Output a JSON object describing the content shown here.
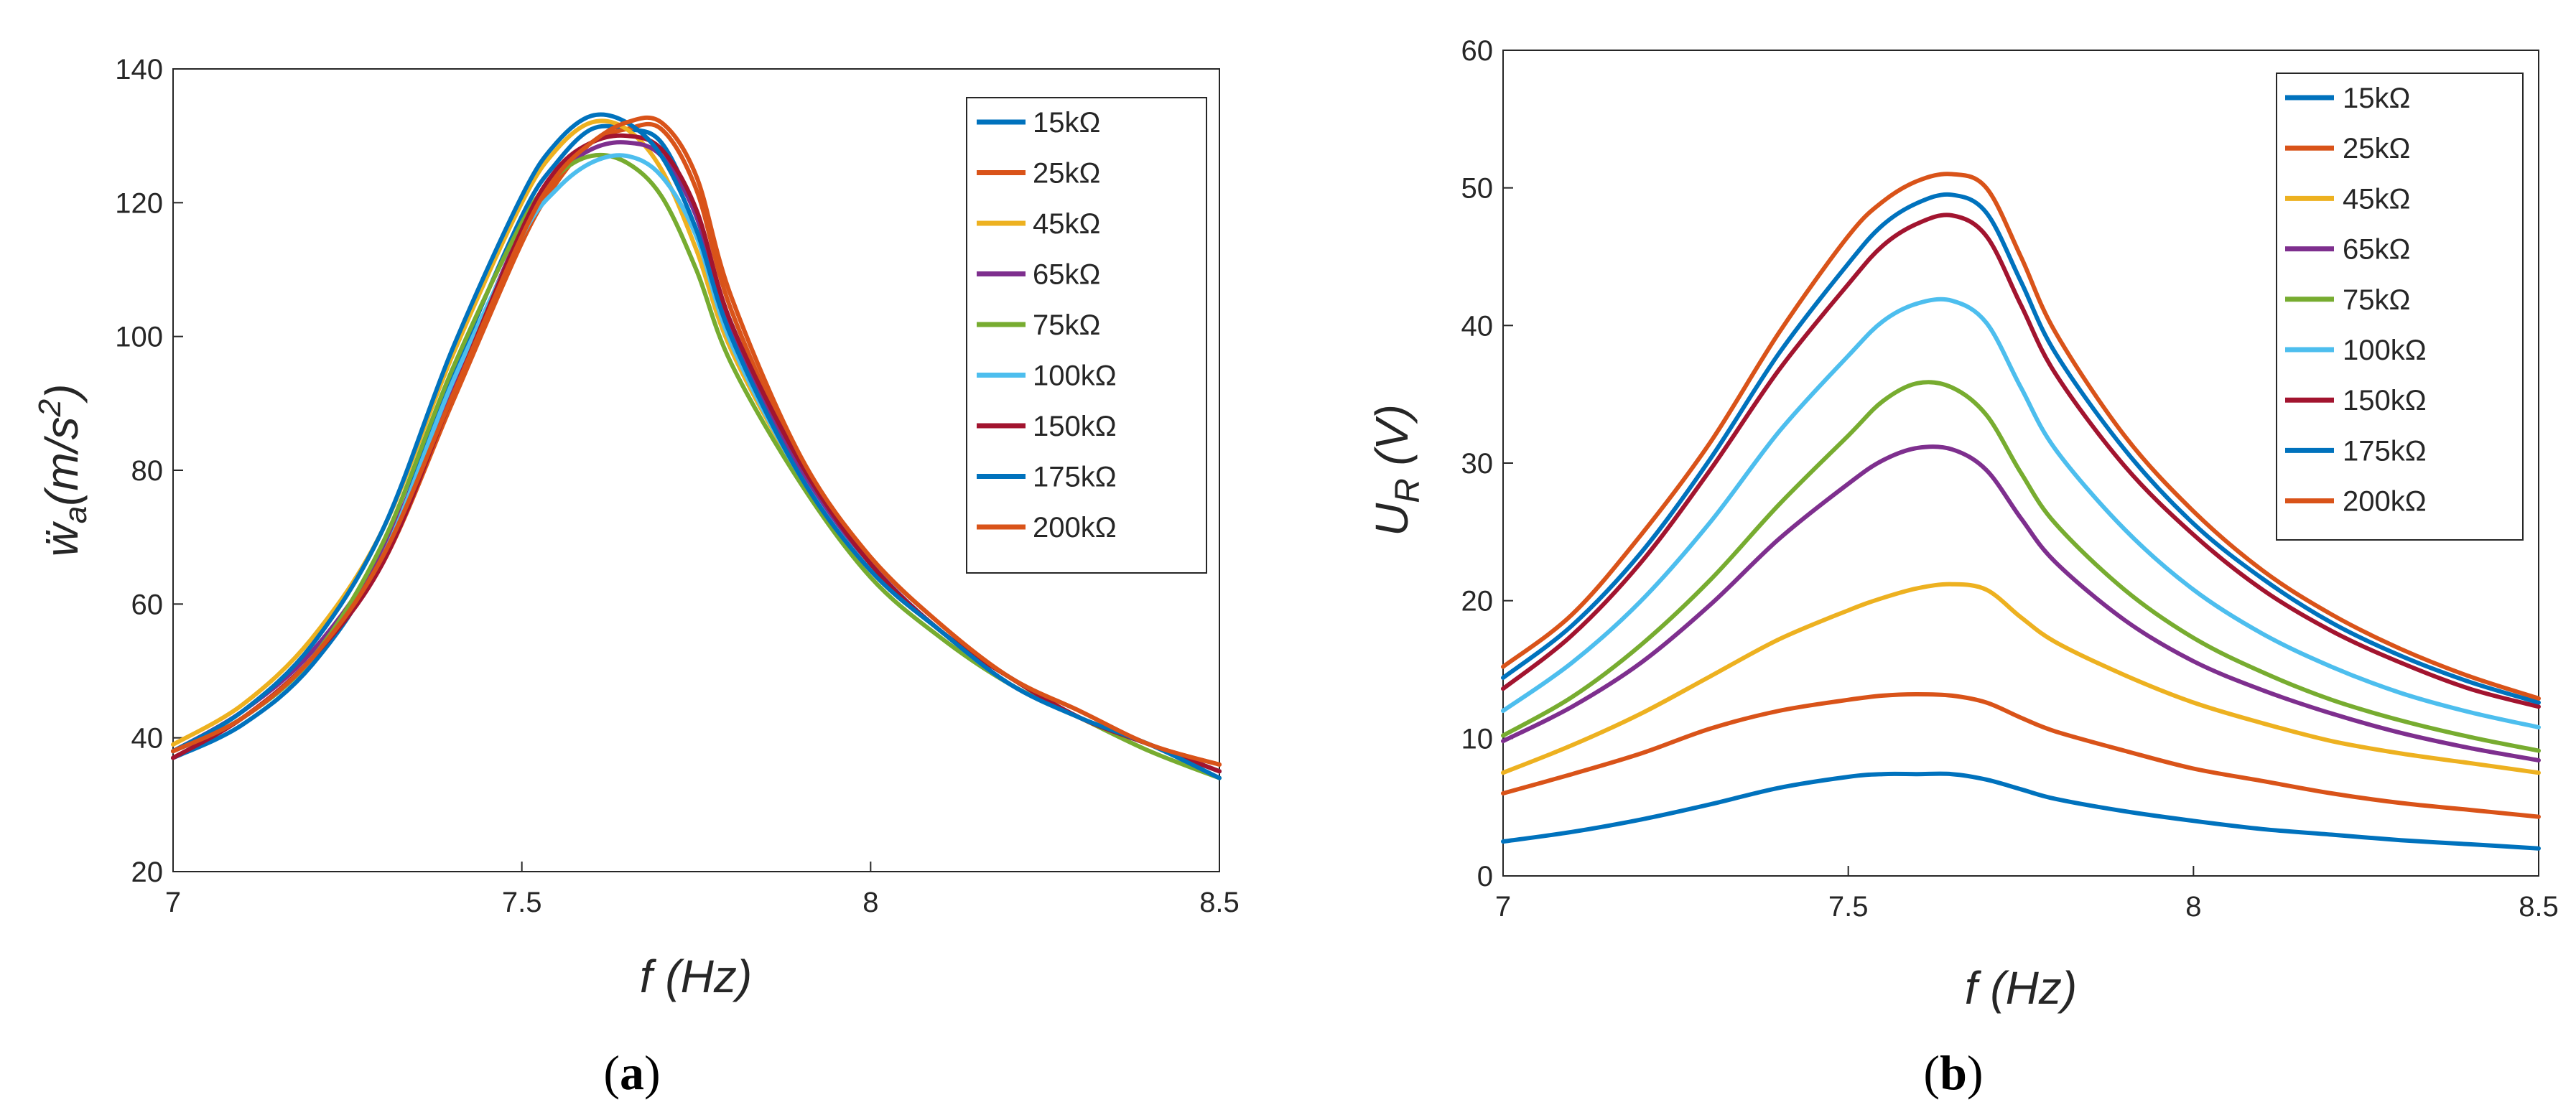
{
  "chart_data": [
    {
      "type": "line",
      "title": "",
      "caption": "a",
      "xlabel": "f (Hz)",
      "ylabel": "ẅa(m/s²)",
      "xlim": [
        7,
        8.5
      ],
      "ylim": [
        20,
        140
      ],
      "xticks": [
        "7",
        "7.5",
        "8",
        "8.5"
      ],
      "yticks": [
        "20",
        "40",
        "60",
        "80",
        "100",
        "120",
        "140"
      ],
      "legend_position": "top-right",
      "x": [
        7.0,
        7.1,
        7.2,
        7.3,
        7.4,
        7.5,
        7.55,
        7.6,
        7.65,
        7.7,
        7.75,
        7.8,
        7.9,
        8.0,
        8.1,
        8.2,
        8.3,
        8.4,
        8.5
      ],
      "series": [
        {
          "name": "15kΩ",
          "color": "#0072BD",
          "values": [
            37,
            42,
            51,
            67,
            94,
            118,
            126,
            131,
            131,
            129,
            118,
            102,
            80,
            66,
            56,
            49,
            43,
            39,
            35
          ]
        },
        {
          "name": "25kΩ",
          "color": "#D95319",
          "values": [
            38,
            43,
            52,
            66,
            90,
            114,
            123,
            129,
            131,
            131,
            122,
            104,
            81,
            67,
            57,
            49,
            44,
            39,
            36
          ]
        },
        {
          "name": "45kΩ",
          "color": "#EDB120",
          "values": [
            39,
            45,
            55,
            71,
            97,
            120,
            128,
            132,
            131,
            125,
            113,
            98,
            79,
            65,
            56,
            48,
            43,
            39,
            35
          ]
        },
        {
          "name": "65kΩ",
          "color": "#7E2F8E",
          "values": [
            38,
            44,
            53,
            68,
            92,
            116,
            124,
            128,
            129,
            127,
            118,
            101,
            80,
            66,
            56,
            49,
            43,
            39,
            35
          ]
        },
        {
          "name": "75kΩ",
          "color": "#77AC30",
          "values": [
            38,
            43,
            52,
            69,
            95,
            117,
            124,
            127,
            126,
            121,
            110,
            96,
            78,
            64,
            55,
            48,
            43,
            38,
            34
          ]
        },
        {
          "name": "100kΩ",
          "color": "#4DBEEE",
          "values": [
            38,
            43,
            52,
            67,
            93,
            115,
            122,
            126,
            127,
            124,
            115,
            99,
            79,
            65,
            56,
            48,
            43,
            39,
            35
          ]
        },
        {
          "name": "150kΩ",
          "color": "#A2142F",
          "values": [
            37,
            43,
            52,
            66,
            91,
            116,
            125,
            129,
            130,
            128,
            119,
            102,
            81,
            66,
            56,
            49,
            43,
            39,
            35
          ]
        },
        {
          "name": "175kΩ",
          "color": "#0072BD",
          "values": [
            38,
            44,
            54,
            71,
            98,
            121,
            129,
            133,
            132,
            127,
            116,
            100,
            79,
            65,
            56,
            48,
            43,
            39,
            34
          ]
        },
        {
          "name": "200kΩ",
          "color": "#D95319",
          "values": [
            38,
            43,
            52,
            67,
            91,
            115,
            124,
            129,
            132,
            132,
            124,
            106,
            82,
            67,
            57,
            49,
            44,
            39,
            36
          ]
        }
      ]
    },
    {
      "type": "line",
      "title": "",
      "caption": "b",
      "xlabel": "f (Hz)",
      "ylabel": "UR (V)",
      "xlim": [
        7,
        8.5
      ],
      "ylim": [
        0,
        60
      ],
      "xticks": [
        "7",
        "7.5",
        "8",
        "8.5"
      ],
      "yticks": [
        "0",
        "10",
        "20",
        "30",
        "40",
        "50",
        "60"
      ],
      "legend_position": "top-right",
      "x": [
        7.0,
        7.1,
        7.2,
        7.3,
        7.4,
        7.5,
        7.55,
        7.6,
        7.65,
        7.7,
        7.75,
        7.8,
        7.9,
        8.0,
        8.1,
        8.2,
        8.3,
        8.4,
        8.5
      ],
      "series": [
        {
          "name": "15kΩ",
          "color": "#0072BD",
          "values": [
            2.5,
            3.2,
            4.1,
            5.2,
            6.4,
            7.2,
            7.4,
            7.4,
            7.4,
            7.0,
            6.3,
            5.6,
            4.7,
            4.0,
            3.4,
            3.0,
            2.6,
            2.3,
            2.0
          ]
        },
        {
          "name": "25kΩ",
          "color": "#D95319",
          "values": [
            6.0,
            7.4,
            8.9,
            10.7,
            12.0,
            12.8,
            13.1,
            13.2,
            13.1,
            12.6,
            11.5,
            10.5,
            9.1,
            7.8,
            6.9,
            6.0,
            5.3,
            4.8,
            4.3
          ]
        },
        {
          "name": "45kΩ",
          "color": "#EDB120",
          "values": [
            7.5,
            9.5,
            11.8,
            14.5,
            17.2,
            19.3,
            20.2,
            20.9,
            21.2,
            20.8,
            18.8,
            17.0,
            14.6,
            12.6,
            11.1,
            9.8,
            8.9,
            8.2,
            7.5
          ]
        },
        {
          "name": "65kΩ",
          "color": "#7E2F8E",
          "values": [
            9.8,
            12.3,
            15.5,
            19.7,
            24.5,
            28.5,
            30.2,
            31.1,
            31.0,
            29.5,
            26.0,
            22.8,
            18.6,
            15.6,
            13.5,
            11.8,
            10.4,
            9.3,
            8.4
          ]
        },
        {
          "name": "75kΩ",
          "color": "#77AC30",
          "values": [
            10.2,
            13.0,
            16.8,
            21.5,
            27.0,
            32.0,
            34.5,
            35.8,
            35.5,
            33.5,
            29.3,
            25.6,
            20.8,
            17.3,
            14.8,
            12.8,
            11.3,
            10.1,
            9.1
          ]
        },
        {
          "name": "100kΩ",
          "color": "#4DBEEE",
          "values": [
            12.0,
            15.5,
            20.0,
            25.7,
            32.3,
            37.8,
            40.3,
            41.6,
            41.8,
            40.2,
            35.5,
            31.0,
            25.2,
            20.8,
            17.6,
            15.2,
            13.3,
            11.9,
            10.8
          ]
        },
        {
          "name": "150kΩ",
          "color": "#A2142F",
          "values": [
            13.6,
            17.5,
            22.8,
            29.5,
            36.8,
            43.0,
            45.8,
            47.4,
            48.0,
            46.5,
            41.5,
            36.5,
            29.8,
            24.8,
            20.8,
            17.8,
            15.5,
            13.6,
            12.3
          ]
        },
        {
          "name": "175kΩ",
          "color": "#0072BD",
          "values": [
            14.4,
            18.2,
            23.5,
            30.3,
            38.0,
            44.5,
            47.3,
            48.9,
            49.5,
            48.2,
            43.2,
            38.0,
            31.0,
            25.6,
            21.6,
            18.4,
            16.0,
            14.1,
            12.6
          ]
        },
        {
          "name": "200kΩ",
          "color": "#D95319",
          "values": [
            15.2,
            19.0,
            24.8,
            31.5,
            39.5,
            46.5,
            49.0,
            50.5,
            51.0,
            50.0,
            45.0,
            39.5,
            32.0,
            26.5,
            22.2,
            19.0,
            16.5,
            14.5,
            12.9
          ]
        }
      ]
    }
  ]
}
